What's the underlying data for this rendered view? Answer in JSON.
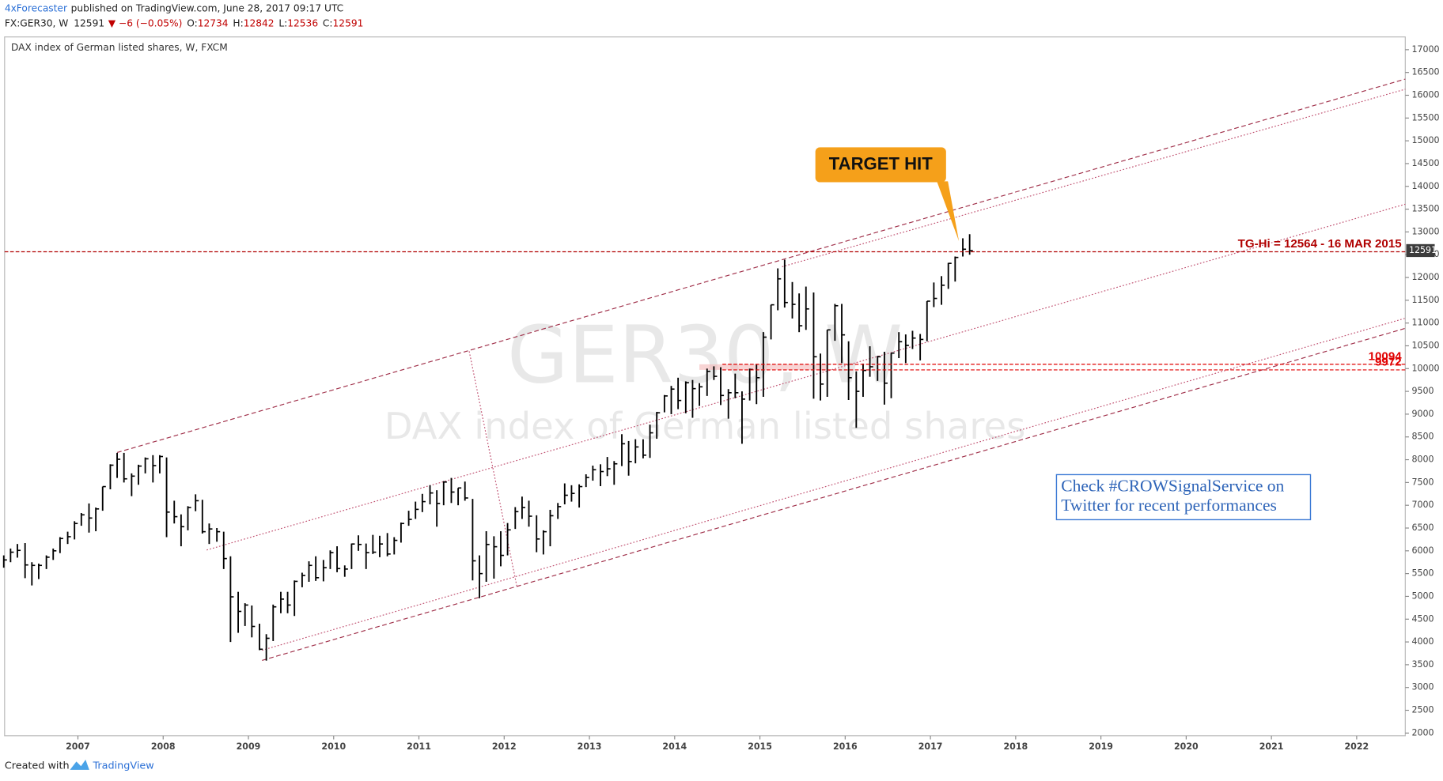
{
  "header": {
    "author": "4xForecaster",
    "published": "published on TradingView.com, June 28, 2017 09:17 UTC",
    "symbol": "FX:GER30, W",
    "price": 12591,
    "change": "▼ −6 (−0.05%)",
    "quote": [
      {
        "label": "O:",
        "value": 12734
      },
      {
        "label": "H:",
        "value": 12842
      },
      {
        "label": "L:",
        "value": 12536
      },
      {
        "label": "C:",
        "value": 12591
      }
    ]
  },
  "footer": {
    "text": "Created with",
    "brand": "TradingView"
  },
  "chart_data": {
    "type": "ohlc",
    "title": "DAX index of German listed shares, W, FXCM",
    "watermark": {
      "symbol": "GER30, W",
      "description": "DAX index of German listed shares"
    },
    "color": "#000000",
    "x": [
      2006.13,
      2006.21,
      2006.29,
      2006.38,
      2006.46,
      2006.54,
      2006.63,
      2006.71,
      2006.79,
      2006.88,
      2006.96,
      2007.04,
      2007.13,
      2007.21,
      2007.29,
      2007.38,
      2007.46,
      2007.54,
      2007.63,
      2007.71,
      2007.79,
      2007.88,
      2007.96,
      2008.04,
      2008.13,
      2008.21,
      2008.29,
      2008.38,
      2008.46,
      2008.54,
      2008.63,
      2008.71,
      2008.79,
      2008.88,
      2008.96,
      2009.04,
      2009.13,
      2009.21,
      2009.29,
      2009.38,
      2009.46,
      2009.54,
      2009.63,
      2009.71,
      2009.79,
      2009.88,
      2009.96,
      2010.04,
      2010.13,
      2010.21,
      2010.29,
      2010.38,
      2010.46,
      2010.54,
      2010.63,
      2010.71,
      2010.79,
      2010.88,
      2010.96,
      2011.04,
      2011.13,
      2011.21,
      2011.29,
      2011.38,
      2011.46,
      2011.54,
      2011.63,
      2011.71,
      2011.79,
      2011.88,
      2011.96,
      2012.04,
      2012.13,
      2012.21,
      2012.29,
      2012.38,
      2012.46,
      2012.54,
      2012.63,
      2012.71,
      2012.79,
      2012.88,
      2012.96,
      2013.04,
      2013.13,
      2013.21,
      2013.29,
      2013.38,
      2013.46,
      2013.54,
      2013.63,
      2013.71,
      2013.79,
      2013.88,
      2013.96,
      2014.04,
      2014.13,
      2014.21,
      2014.29,
      2014.38,
      2014.46,
      2014.54,
      2014.63,
      2014.71,
      2014.79,
      2014.88,
      2014.96,
      2015.04,
      2015.13,
      2015.21,
      2015.29,
      2015.38,
      2015.46,
      2015.54,
      2015.63,
      2015.71,
      2015.79,
      2015.88,
      2015.96,
      2016.04,
      2016.13,
      2016.21,
      2016.29,
      2016.38,
      2016.46,
      2016.54,
      2016.63,
      2016.71,
      2016.79,
      2016.88,
      2016.96,
      2017.04,
      2017.13,
      2017.21,
      2017.29,
      2017.38,
      2017.46
    ],
    "high": [
      5900,
      6050,
      6150,
      6170,
      5750,
      5720,
      5900,
      6050,
      6300,
      6420,
      6650,
      6830,
      7040,
      6950,
      7410,
      7900,
      8150,
      8150,
      7700,
      7890,
      8050,
      8100,
      8100,
      8050,
      7100,
      6800,
      6980,
      7240,
      7120,
      6600,
      6500,
      6420,
      5880,
      5100,
      4850,
      4800,
      4400,
      4170,
      4820,
      5100,
      5100,
      5350,
      5520,
      5770,
      5880,
      5800,
      6010,
      6100,
      5680,
      6160,
      6340,
      6160,
      6350,
      6330,
      6390,
      6300,
      6620,
      6880,
      7080,
      7250,
      7440,
      7330,
      7530,
      7600,
      7380,
      7520,
      7140,
      5900,
      6430,
      6320,
      6430,
      6610,
      6960,
      7190,
      7100,
      6780,
      6450,
      6900,
      7050,
      7480,
      7440,
      7460,
      7680,
      7870,
      7900,
      8060,
      7970,
      8560,
      8410,
      8450,
      8450,
      8770,
      9050,
      9420,
      9620,
      9800,
      9720,
      9750,
      9680,
      10000,
      10050,
      10030,
      9550,
      9890,
      9500,
      10000,
      10090,
      10800,
      11400,
      12200,
      12390,
      11900,
      11650,
      11800,
      11670,
      10330,
      10850,
      11420,
      11420,
      10600,
      9940,
      10110,
      10490,
      10280,
      10370,
      10340,
      10800,
      10750,
      10830,
      10760,
      11480,
      11890,
      12030,
      12320,
      12460,
      12860,
      12950
    ],
    "low": [
      5630,
      5750,
      5850,
      5400,
      5240,
      5380,
      5600,
      5800,
      5950,
      6150,
      6250,
      6550,
      6400,
      6430,
      6880,
      7350,
      7600,
      7500,
      7200,
      7450,
      7700,
      7500,
      7700,
      6300,
      6600,
      6100,
      6450,
      6870,
      6380,
      6150,
      6200,
      5600,
      4000,
      4200,
      4350,
      4100,
      3820,
      3590,
      4020,
      4630,
      4630,
      4570,
      5200,
      5320,
      5340,
      5330,
      5600,
      5530,
      5430,
      5600,
      6000,
      5600,
      5930,
      5860,
      5880,
      5920,
      6180,
      6550,
      6700,
      6850,
      7020,
      6530,
      7000,
      7050,
      7000,
      7100,
      5350,
      4960,
      5320,
      5390,
      5660,
      5900,
      6480,
      6700,
      6530,
      5970,
      5920,
      6100,
      6700,
      7020,
      7080,
      6950,
      7400,
      7540,
      7420,
      7640,
      7450,
      7860,
      7650,
      7920,
      8030,
      8040,
      8460,
      9040,
      9000,
      9110,
      9020,
      8920,
      9180,
      9400,
      9750,
      9200,
      8900,
      9350,
      8350,
      9300,
      9220,
      9380,
      10640,
      11280,
      11340,
      11100,
      10800,
      10850,
      9340,
      9300,
      9380,
      10610,
      10120,
      9310,
      8700,
      9380,
      9820,
      9730,
      9210,
      9350,
      10230,
      10120,
      10430,
      10180,
      10600,
      11350,
      11400,
      11750,
      11910,
      12460,
      12500
    ],
    "close": [
      5800,
      5970,
      6010,
      5690,
      5680,
      5680,
      5860,
      6000,
      6270,
      6310,
      6600,
      6790,
      6720,
      6920,
      7410,
      7880,
      8010,
      7580,
      7640,
      7860,
      8020,
      7870,
      8070,
      6850,
      6750,
      6530,
      6950,
      7100,
      6420,
      6480,
      6420,
      5830,
      4990,
      4670,
      4810,
      4340,
      3840,
      4080,
      4770,
      4940,
      4810,
      5330,
      5460,
      5680,
      5410,
      5630,
      5960,
      5610,
      5600,
      6150,
      6140,
      5960,
      5970,
      6150,
      5930,
      6230,
      6600,
      6690,
      6910,
      7080,
      7270,
      7040,
      7510,
      7290,
      7380,
      7160,
      5780,
      5500,
      6140,
      6090,
      5900,
      6460,
      6860,
      6950,
      6760,
      6260,
      6420,
      6770,
      6970,
      7220,
      7260,
      7410,
      7610,
      7780,
      7740,
      7800,
      7910,
      8350,
      7960,
      8280,
      8100,
      8590,
      9030,
      9400,
      9550,
      9300,
      9690,
      9560,
      9600,
      9940,
      9830,
      9410,
      9470,
      9470,
      9330,
      9980,
      9800,
      10690,
      11400,
      11970,
      11450,
      11410,
      10940,
      11310,
      10260,
      9660,
      10850,
      11380,
      10740,
      9800,
      9500,
      9960,
      10040,
      10260,
      9680,
      10340,
      10590,
      10510,
      10670,
      10640,
      11480,
      11540,
      11830,
      12310,
      12440,
      12620,
      12590
    ],
    "xlim": [
      2006.14,
      2022.57
    ],
    "ylim": [
      1940,
      17280
    ],
    "xticks": [
      2007,
      2008,
      2009,
      2010,
      2011,
      2012,
      2013,
      2014,
      2015,
      2016,
      2017,
      2018,
      2019,
      2020,
      2021,
      2022
    ],
    "yticks": [
      2000,
      2500,
      3000,
      3500,
      4000,
      4500,
      5000,
      5500,
      6000,
      6500,
      7000,
      7500,
      8000,
      8500,
      9000,
      9500,
      10000,
      10500,
      11000,
      11500,
      12000,
      12500,
      13000,
      13500,
      14000,
      14500,
      15000,
      15500,
      16000,
      16500,
      17000
    ],
    "last_price": 12591,
    "levels": [
      {
        "value": 12564,
        "from": 2006.14,
        "label": "TG-Hi = 12564 - 16 MAR 2015",
        "color": "#b00000"
      },
      {
        "value": 10094,
        "from": 2014.56,
        "label": 10094,
        "color": "#e00000"
      },
      {
        "value": 9972,
        "from": 2014.56,
        "label": 9972,
        "color": "#e00000"
      }
    ],
    "zones": [
      {
        "x": [
          2014.29,
          2015.8
        ],
        "y": [
          9972,
          10094
        ],
        "color": "#f4b8b8"
      }
    ],
    "trendlines": [
      {
        "from": [
          2007.46,
          8158
        ],
        "to": [
          2022.57,
          16355
        ],
        "style": "dashed",
        "color": "#a0304a"
      },
      {
        "from": [
          2015.26,
          12236
        ],
        "to": [
          2022.57,
          16133
        ],
        "style": "dotted",
        "color": "#c05070"
      },
      {
        "from": [
          2008.51,
          6018
        ],
        "to": [
          2022.57,
          13609
        ],
        "style": "dotted",
        "color": "#c05070"
      },
      {
        "from": [
          2009.16,
          3817
        ],
        "to": [
          2022.57,
          11106
        ],
        "style": "dotted",
        "color": "#c05070"
      },
      {
        "from": [
          2009.16,
          3595
        ],
        "to": [
          2022.57,
          10884
        ],
        "style": "dashed",
        "color": "#a0304a"
      },
      {
        "from": [
          2011.59,
          10379
        ],
        "to": [
          2012.15,
          5210
        ],
        "style": "dotted",
        "color": "#c05070"
      }
    ],
    "callout": "TARGET HIT",
    "text_box": [
      "Check #CROWSignalService on",
      "Twitter for recent performances"
    ]
  }
}
